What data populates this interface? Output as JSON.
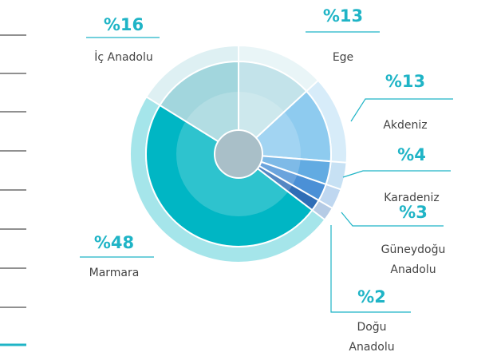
{
  "chart_data": {
    "type": "donut",
    "categories": [
      "Ege",
      "Akdeniz",
      "Karadeniz",
      "Güneydoğu Anadolu",
      "Doğu Anadolu",
      "Marmara",
      "İç Anadolu"
    ],
    "values": [
      13,
      13,
      4,
      3,
      2,
      48,
      16
    ],
    "value_labels": [
      "%13",
      "%13",
      "%4",
      "%3",
      "%2",
      "%48",
      "%16"
    ],
    "colors": [
      "#c3e3ea",
      "#8ecbef",
      "#62abe2",
      "#4b90d6",
      "#2f6db6",
      "#00b6c4",
      "#a2d6dd"
    ]
  }
}
